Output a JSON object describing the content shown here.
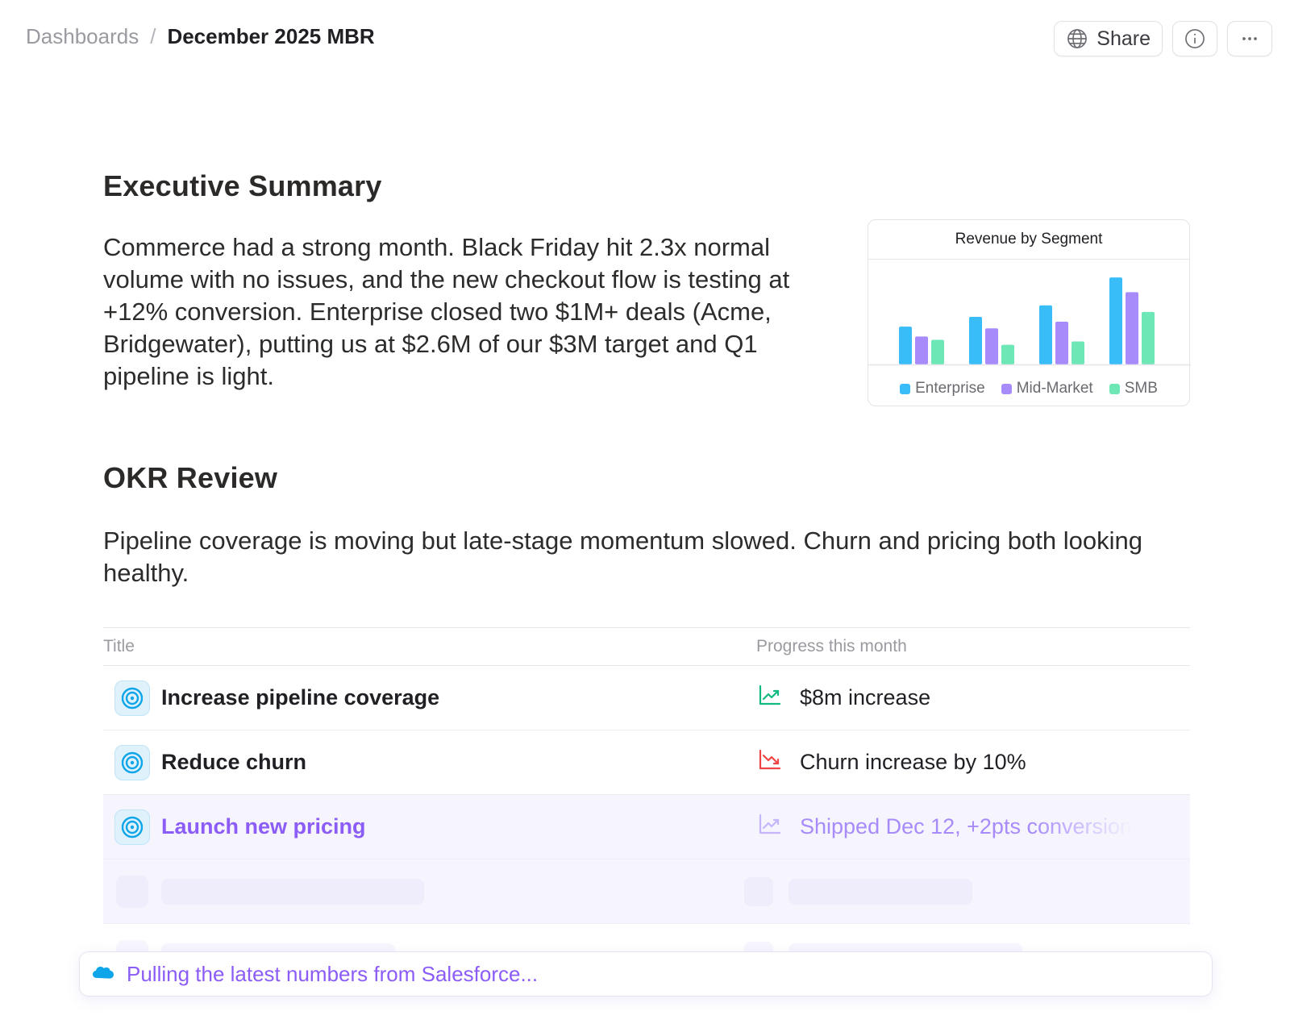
{
  "breadcrumb": {
    "parent": "Dashboards",
    "separator": "/",
    "current": "December 2025 MBR"
  },
  "toolbar": {
    "share_label": "Share",
    "share_icon": "globe-icon",
    "info_icon": "info-icon",
    "more_icon": "more-horizontal-icon"
  },
  "executive_summary": {
    "title": "Executive Summary",
    "text": "Commerce had a strong month. Black Friday hit 2.3x normal volume with no issues, and the new checkout flow is testing at +12% conversion. Enterprise closed two $1M+ deals (Acme, Bridgewater), putting us at $2.6M of our $3M target and Q1 pipeline is light."
  },
  "chart_data": {
    "type": "bar",
    "title": "Revenue by Segment",
    "categories": [
      "",
      "",
      "",
      ""
    ],
    "series": [
      {
        "name": "Enterprise",
        "color": "#38bdf8",
        "values": [
          46,
          58,
          72,
          106
        ]
      },
      {
        "name": "Mid-Market",
        "color": "#a78bfa",
        "values": [
          34,
          44,
          52,
          88
        ]
      },
      {
        "name": "SMB",
        "color": "#6ee7b7",
        "values": [
          30,
          24,
          28,
          64
        ]
      }
    ],
    "ylim": [
      0,
      110
    ],
    "grid": false,
    "legend": "bottom",
    "xlabel": "",
    "ylabel": ""
  },
  "okr_review": {
    "title": "OKR Review",
    "text": "Pipeline coverage is moving but late-stage momentum slowed. Churn and pricing both looking healthy."
  },
  "table": {
    "headers": {
      "title": "Title",
      "progress": "Progress this month"
    },
    "rows": [
      {
        "title": "Increase pipeline coverage",
        "progress": "$8m increase",
        "trend": "up",
        "trend_color": "#10b981"
      },
      {
        "title": "Reduce churn",
        "progress": "Churn increase by 10%",
        "trend": "down",
        "trend_color": "#ef4444"
      },
      {
        "title": "Launch new pricing",
        "progress": "Shipped Dec 12, +2pts conversion",
        "trend": "up",
        "trend_color": "#c4b5fd"
      }
    ]
  },
  "toast": {
    "text": "Pulling the latest numbers from Salesforce...",
    "icon": "salesforce-logo"
  }
}
